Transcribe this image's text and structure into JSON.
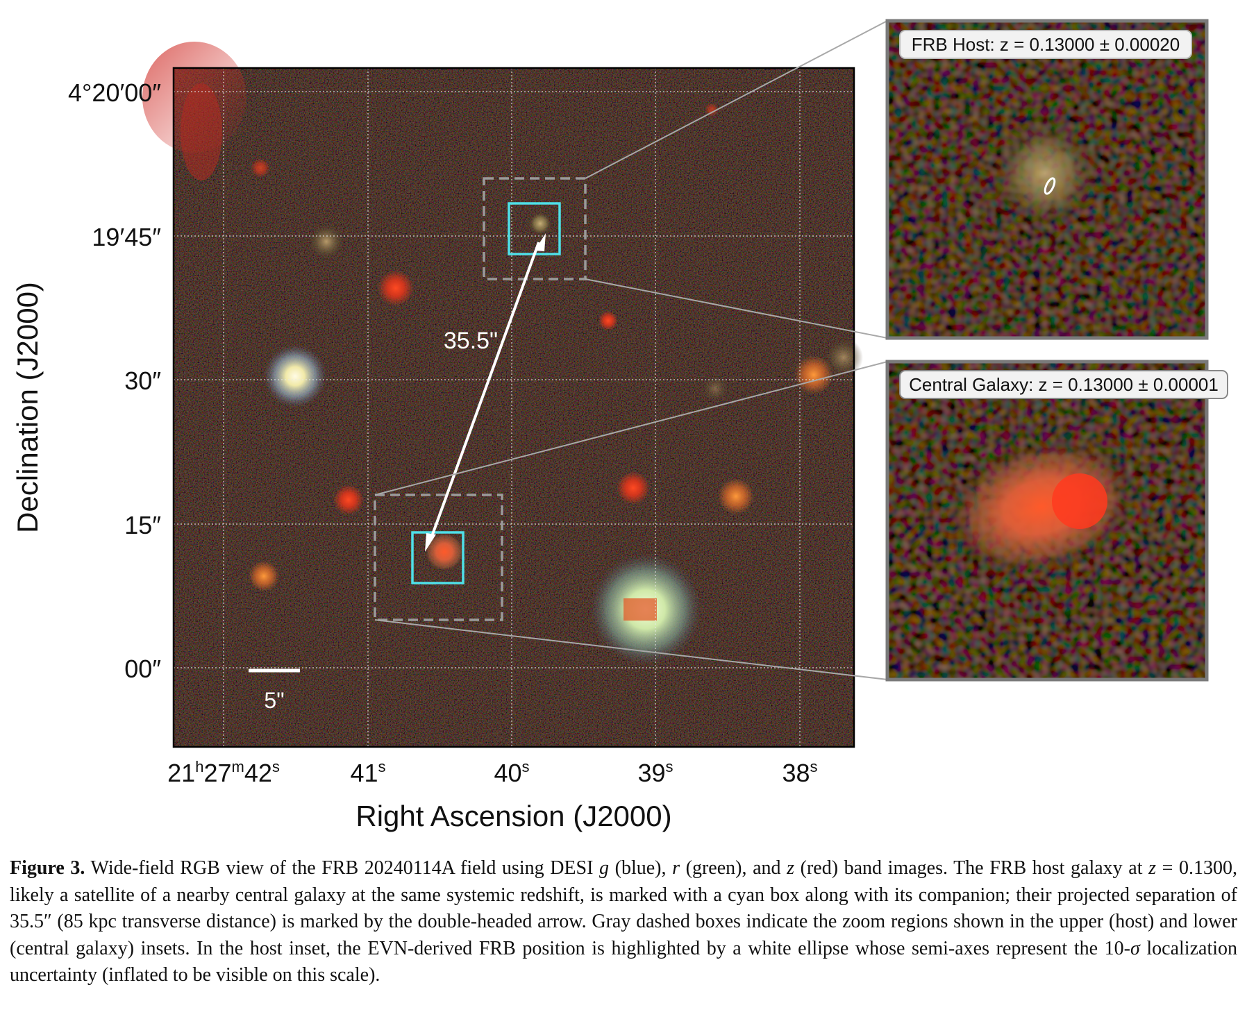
{
  "figure": {
    "yaxis_label": "Declination (J2000)",
    "xaxis_label": "Right Ascension (J2000)",
    "dec_ticks": [
      {
        "text": "4°20′00″"
      },
      {
        "text": "19′45″"
      },
      {
        "text": "30″"
      },
      {
        "text": "15″"
      },
      {
        "text": "00″"
      }
    ],
    "ra_ticks": [
      {
        "text": "21h27m42s"
      },
      {
        "text": "41s"
      },
      {
        "text": "40s"
      },
      {
        "text": "39s"
      },
      {
        "text": "38s"
      }
    ],
    "ra_ticks_parts": [
      {
        "main": "21",
        "h": "h",
        "min": "27",
        "m": "m",
        "sec": "42",
        "s": "s"
      },
      {
        "sec": "41",
        "s": "s"
      },
      {
        "sec": "40",
        "s": "s"
      },
      {
        "sec": "39",
        "s": "s"
      },
      {
        "sec": "38",
        "s": "s"
      }
    ],
    "separation_label": "35.5\"",
    "scalebar_label": "5\"",
    "inset_host_label": "FRB Host: z = 0.13000 ± 0.00020",
    "inset_central_label": "Central Galaxy: z = 0.13000 ± 0.00001",
    "colors": {
      "cyan_box": "#4fe0e8",
      "dashed_box": "#9a9a9a",
      "arrow": "#ffffff",
      "sky": "#1d120e"
    }
  },
  "caption": {
    "label": "Figure 3.",
    "p1": " Wide-field RGB view of the FRB 20240114A field using DESI ",
    "g": "g",
    "p2": " (blue), ",
    "r": "r",
    "p3": " (green), and ",
    "zb": "z",
    "p4": " (red) band images. The FRB host galaxy at ",
    "zh": "z",
    "p5": " = 0.1300, likely a satellite of a nearby central galaxy at the same systemic redshift, is marked with a cyan box along with its companion; their projected separation of 35.5″ (85 kpc transverse distance) is marked by the double-headed arrow. Gray dashed boxes indicate the zoom regions shown in the upper (host) and lower (central galaxy) insets. In the host inset, the EVN-derived FRB position is highlighted by a white ellipse whose semi-axes represent the 10-",
    "sigma": "σ",
    "p6": " localization uncertainty (inflated to be visible on this scale)."
  }
}
